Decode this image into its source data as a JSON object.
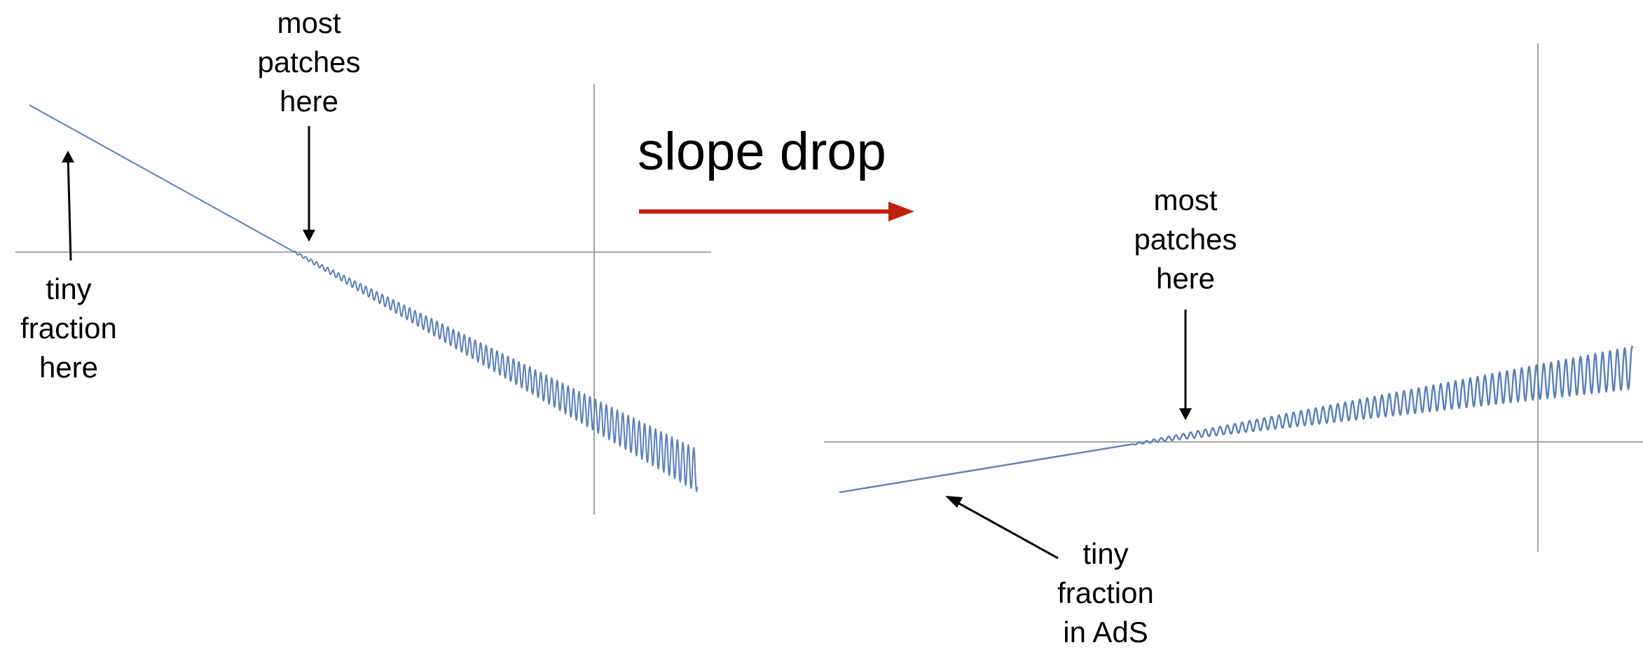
{
  "title": "slope drop",
  "colors": {
    "curve": "#5a7fbb",
    "axis": "#8a8a8a",
    "pointer_arrow": "#000000",
    "transition_arrow": "#c0220e"
  },
  "left_panel": {
    "label_top": [
      "most",
      "patches",
      "here"
    ],
    "label_bottom": [
      "tiny",
      "fraction",
      "here"
    ]
  },
  "right_panel": {
    "label_top": [
      "most",
      "patches",
      "here"
    ],
    "label_bottom": [
      "tiny",
      "fraction",
      "in AdS"
    ]
  }
}
